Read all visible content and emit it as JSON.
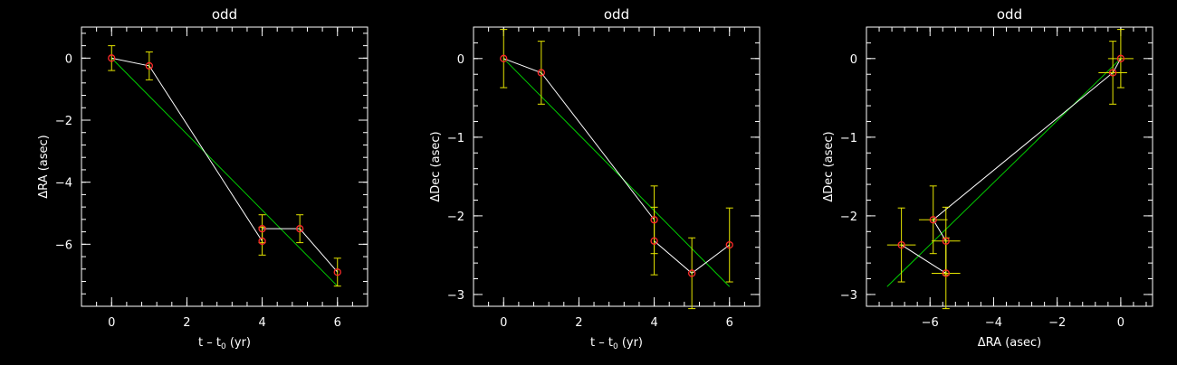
{
  "colors": {
    "background": "#000000",
    "axes": "#ffffff",
    "data_line": "#ffffff",
    "fit_line": "#00cc00",
    "error_bars": "#e6e600",
    "markers": "#ff2a2a"
  },
  "chart_data": [
    {
      "type": "scatter",
      "title": "odd",
      "xlabel_parts": [
        "t – t",
        "0",
        " (yr)"
      ],
      "ylabel_parts": [
        "Δ",
        "RA (asec)"
      ],
      "xlim": [
        -0.8,
        6.8
      ],
      "ylim": [
        -8,
        1
      ],
      "xticks": [
        0,
        2,
        4,
        6
      ],
      "yticks": [
        0,
        -2,
        -4,
        -6
      ],
      "xtick_labels": [
        "0",
        "2",
        "4",
        "6"
      ],
      "ytick_labels": [
        "0",
        "−2",
        "−4",
        "−6"
      ],
      "x_minor_step": 0.4,
      "y_minor_step": 0.4,
      "points": [
        {
          "x": 0,
          "y": 0,
          "yerr": 0.4
        },
        {
          "x": 1,
          "y": -0.25,
          "yerr": 0.45
        },
        {
          "x": 4,
          "y": -5.9,
          "yerr": 0.45
        },
        {
          "x": 4,
          "y": -5.5,
          "yerr": 0.45
        },
        {
          "x": 5,
          "y": -5.5,
          "yerr": 0.45
        },
        {
          "x": 6,
          "y": -6.9,
          "yerr": 0.45
        }
      ],
      "connect_order": [
        0,
        1,
        2,
        3,
        4,
        5
      ],
      "fit": [
        [
          0,
          0
        ],
        [
          6,
          -7.35
        ]
      ]
    },
    {
      "type": "scatter",
      "title": "odd",
      "xlabel_parts": [
        "t – t",
        "0",
        " (yr)"
      ],
      "ylabel_parts": [
        "Δ",
        "Dec (asec)"
      ],
      "xlim": [
        -0.8,
        6.8
      ],
      "ylim": [
        -3.15,
        0.4
      ],
      "xticks": [
        0,
        2,
        4,
        6
      ],
      "yticks": [
        0,
        -1,
        -2,
        -3
      ],
      "xtick_labels": [
        "0",
        "2",
        "4",
        "6"
      ],
      "ytick_labels": [
        "0",
        "−1",
        "−2",
        "−3"
      ],
      "x_minor_step": 0.4,
      "y_minor_step": 0.2,
      "points": [
        {
          "x": 0,
          "y": 0,
          "yerr": 0.37
        },
        {
          "x": 1,
          "y": -0.18,
          "yerr": 0.4
        },
        {
          "x": 4,
          "y": -2.05,
          "yerr": 0.43
        },
        {
          "x": 4,
          "y": -2.32,
          "yerr": 0.43
        },
        {
          "x": 5,
          "y": -2.73,
          "yerr": 0.45
        },
        {
          "x": 6,
          "y": -2.37,
          "yerr": 0.47
        }
      ],
      "connect_order": [
        0,
        1,
        2,
        3,
        4,
        5
      ],
      "fit": [
        [
          0,
          0
        ],
        [
          6,
          -2.9
        ]
      ]
    },
    {
      "type": "scatter",
      "title": "odd",
      "xlabel_parts": [
        "Δ",
        "RA (asec)"
      ],
      "ylabel_parts": [
        "Δ",
        "Dec (asec)"
      ],
      "xlim": [
        -8,
        1
      ],
      "ylim": [
        -3.15,
        0.4
      ],
      "xticks": [
        -6,
        -4,
        -2,
        0
      ],
      "yticks": [
        0,
        -1,
        -2,
        -3
      ],
      "xtick_labels": [
        "−6",
        "−4",
        "−2",
        "0"
      ],
      "ytick_labels": [
        "0",
        "−1",
        "−2",
        "−3"
      ],
      "x_minor_step": 0.4,
      "y_minor_step": 0.2,
      "points": [
        {
          "x": 0,
          "y": 0,
          "xerr": 0.4,
          "yerr": 0.37
        },
        {
          "x": -0.25,
          "y": -0.18,
          "xerr": 0.45,
          "yerr": 0.4
        },
        {
          "x": -5.9,
          "y": -2.05,
          "xerr": 0.45,
          "yerr": 0.43
        },
        {
          "x": -5.5,
          "y": -2.32,
          "xerr": 0.45,
          "yerr": 0.43
        },
        {
          "x": -5.5,
          "y": -2.73,
          "xerr": 0.45,
          "yerr": 0.45
        },
        {
          "x": -6.9,
          "y": -2.37,
          "xerr": 0.45,
          "yerr": 0.47
        }
      ],
      "connect_order": [
        0,
        1,
        2,
        3,
        4,
        5
      ],
      "fit": [
        [
          0,
          0
        ],
        [
          -7.35,
          -2.9
        ]
      ]
    }
  ]
}
